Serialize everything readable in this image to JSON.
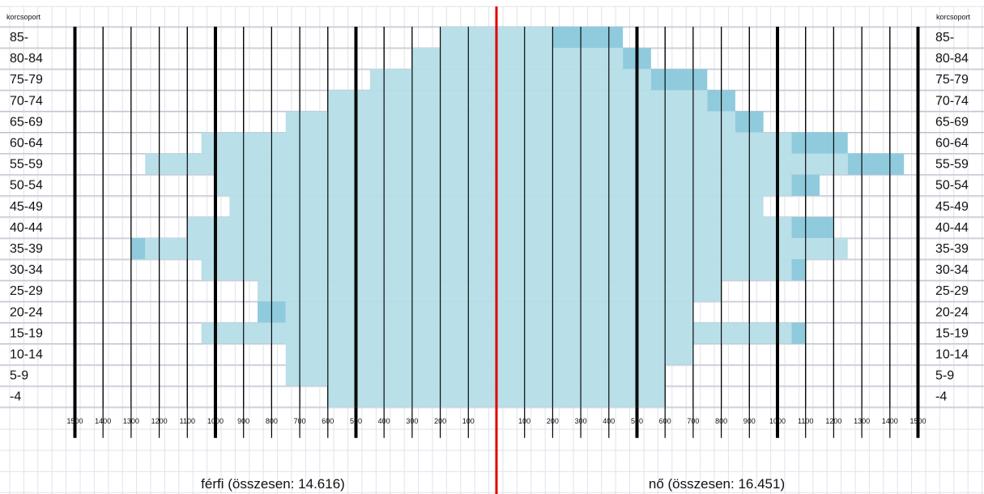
{
  "chart_data": {
    "type": "bar",
    "orientation": "horizontal",
    "variant": "population-pyramid",
    "header_label": "korcsoport",
    "age_groups": [
      "85-",
      "80-84",
      "75-79",
      "70-74",
      "65-69",
      "60-64",
      "55-59",
      "50-54",
      "45-49",
      "40-44",
      "35-39",
      "30-34",
      "25-29",
      "20-24",
      "15-19",
      "10-14",
      "5-9",
      "-4"
    ],
    "x_ticks_left": [
      "1500",
      "1400",
      "1300",
      "1200",
      "1100",
      "1000",
      "900",
      "800",
      "700",
      "600",
      "500",
      "400",
      "300",
      "200",
      "100"
    ],
    "x_ticks_right": [
      "100",
      "200",
      "300",
      "400",
      "500",
      "600",
      "700",
      "800",
      "900",
      "1000",
      "1100",
      "1200",
      "1300",
      "1400",
      "1500"
    ],
    "xlim": [
      -1500,
      1500
    ],
    "major_gridlines": [
      -1500,
      -1000,
      -500,
      500,
      1000,
      1500
    ],
    "minor_gridline_step": 100,
    "center_line_color": "#e00000",
    "series": [
      {
        "name": "férfi (összesen: 14.616)",
        "side": "left",
        "values": [
          200,
          300,
          450,
          600,
          750,
          1050,
          1250,
          1000,
          950,
          1100,
          1250,
          1050,
          850,
          750,
          1050,
          750,
          750,
          600
        ],
        "dark_values": [
          0,
          0,
          0,
          0,
          0,
          0,
          0,
          0,
          0,
          0,
          1300,
          0,
          0,
          850,
          0,
          0,
          600,
          0
        ]
      },
      {
        "name": "nő (összesen: 16.451)",
        "side": "right",
        "values": [
          200,
          450,
          550,
          750,
          850,
          1050,
          1250,
          1050,
          950,
          1050,
          1250,
          1050,
          800,
          700,
          1050,
          700,
          600,
          600
        ],
        "dark_values": [
          450,
          550,
          750,
          850,
          950,
          1250,
          1450,
          1150,
          0,
          1200,
          0,
          1100,
          0,
          0,
          1100,
          0,
          0,
          0
        ]
      }
    ],
    "colors": {
      "bar": "#b9dfe9",
      "bar_dark": "#8fcbdc",
      "gridline": "#bcbcc8",
      "vertical_line": "#000000",
      "center_line": "#e00000"
    }
  }
}
